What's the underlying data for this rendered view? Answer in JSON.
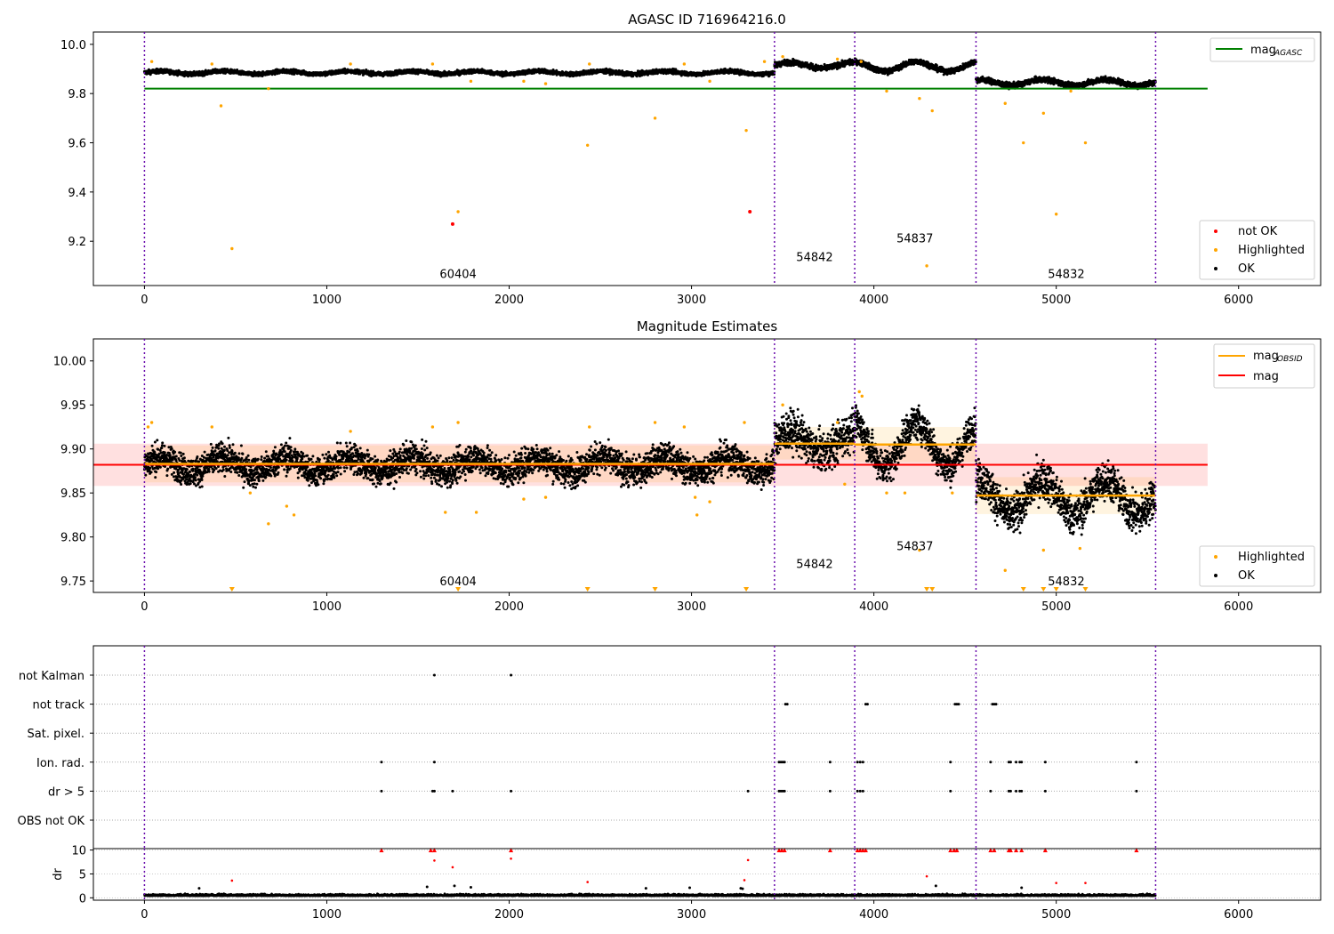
{
  "chart_data": [
    {
      "type": "scatter",
      "title": "AGASC ID 716964216.0",
      "xlabel": "",
      "ylabel": "",
      "xlim": [
        -280,
        6450
      ],
      "ylim": [
        9.02,
        10.05
      ],
      "xticks": [
        0,
        1000,
        2000,
        3000,
        4000,
        5000,
        6000
      ],
      "yticks": [
        9.2,
        9.4,
        9.6,
        9.8,
        10.0
      ],
      "ytick_format": 1,
      "grid": false,
      "legend_placement": "top-right / lower-right",
      "segment_boundaries": [
        0,
        3455,
        3895,
        4560,
        5545
      ],
      "obsids": [
        {
          "label": "60404",
          "x": 1720,
          "y": 9.05
        },
        {
          "label": "54842",
          "x": 3675,
          "y": 9.12
        },
        {
          "label": "54837",
          "x": 4225,
          "y": 9.195
        },
        {
          "label": "54832",
          "x": 5055,
          "y": 9.05
        }
      ],
      "lines": [
        {
          "name": "mag",
          "subscript": "AGASC",
          "color": "#008000",
          "x": [
            0,
            5830
          ],
          "y": [
            9.82,
            9.82
          ]
        }
      ],
      "ok_segments": [
        {
          "x0": 0,
          "x1": 3455,
          "base": 9.885,
          "amp": 0.006,
          "noise": 0.006
        },
        {
          "x0": 3455,
          "x1": 3895,
          "base": 9.915,
          "amp": 0.012,
          "noise": 0.008
        },
        {
          "x0": 3895,
          "x1": 4560,
          "base": 9.91,
          "amp": 0.02,
          "noise": 0.008
        },
        {
          "x0": 4560,
          "x1": 5545,
          "base": 9.845,
          "amp": 0.012,
          "noise": 0.008
        }
      ],
      "highlighted": [
        [
          40,
          9.93
        ],
        [
          370,
          9.92
        ],
        [
          420,
          9.75
        ],
        [
          480,
          9.17
        ],
        [
          680,
          9.82
        ],
        [
          1130,
          9.92
        ],
        [
          1580,
          9.92
        ],
        [
          1720,
          9.32
        ],
        [
          1790,
          9.85
        ],
        [
          2080,
          9.85
        ],
        [
          2200,
          9.84
        ],
        [
          2430,
          9.59
        ],
        [
          2440,
          9.92
        ],
        [
          2800,
          9.7
        ],
        [
          2960,
          9.92
        ],
        [
          3100,
          9.85
        ],
        [
          3300,
          9.65
        ],
        [
          3400,
          9.93
        ],
        [
          3500,
          9.95
        ],
        [
          3800,
          9.94
        ],
        [
          3930,
          9.93
        ],
        [
          4070,
          9.81
        ],
        [
          4250,
          9.78
        ],
        [
          4290,
          9.1
        ],
        [
          4320,
          9.73
        ],
        [
          4720,
          9.76
        ],
        [
          4820,
          9.6
        ],
        [
          4930,
          9.72
        ],
        [
          5000,
          9.31
        ],
        [
          5160,
          9.6
        ],
        [
          5080,
          9.81
        ]
      ],
      "not_ok": [
        [
          1690,
          9.27
        ],
        [
          3320,
          9.32
        ]
      ],
      "legends": [
        {
          "entries": [
            {
              "label": "mag",
              "subscript": "AGASC",
              "kind": "line",
              "color": "#008000"
            }
          ]
        },
        {
          "entries": [
            {
              "label": "not OK",
              "kind": "dot",
              "color": "#ff0000"
            },
            {
              "label": "Highlighted",
              "kind": "dot",
              "color": "#ffa500"
            },
            {
              "label": "OK",
              "kind": "dot",
              "color": "#000000"
            }
          ]
        }
      ]
    },
    {
      "type": "scatter",
      "title": "Magnitude Estimates",
      "xlabel": "",
      "ylabel": "",
      "xlim": [
        -280,
        6450
      ],
      "ylim": [
        9.737,
        10.025
      ],
      "xticks": [
        0,
        1000,
        2000,
        3000,
        4000,
        5000,
        6000
      ],
      "yticks": [
        9.75,
        9.8,
        9.85,
        9.9,
        9.95,
        10.0
      ],
      "ytick_format": 2,
      "grid": false,
      "legend_placement": "top-right / lower-right",
      "segment_boundaries": [
        0,
        3455,
        3895,
        4560,
        5545
      ],
      "obsids": [
        {
          "label": "60404",
          "x": 1720,
          "y": 9.745
        },
        {
          "label": "54842",
          "x": 3675,
          "y": 9.765
        },
        {
          "label": "54837",
          "x": 4225,
          "y": 9.785
        },
        {
          "label": "54832",
          "x": 5055,
          "y": 9.745
        }
      ],
      "mag_line": {
        "name": "mag",
        "color": "#ff0000",
        "x": [
          -280,
          5830
        ],
        "y": 9.882,
        "band": [
          9.858,
          9.906
        ]
      },
      "obsid_mags": [
        {
          "x0": 0,
          "x1": 3455,
          "y": 9.883,
          "band": [
            9.862,
            9.904
          ]
        },
        {
          "x0": 3455,
          "x1": 3895,
          "y": 9.906,
          "band": [
            9.888,
            9.925
          ]
        },
        {
          "x0": 3895,
          "x1": 4560,
          "y": 9.905,
          "band": [
            9.885,
            9.925
          ]
        },
        {
          "x0": 4560,
          "x1": 5545,
          "y": 9.847,
          "band": [
            9.826,
            9.868
          ]
        }
      ],
      "ok_segments": [
        {
          "x0": 0,
          "x1": 3455,
          "base": 9.882,
          "amp": 0.008,
          "noise": 0.012
        },
        {
          "x0": 3455,
          "x1": 3895,
          "base": 9.908,
          "amp": 0.012,
          "noise": 0.016
        },
        {
          "x0": 3895,
          "x1": 4560,
          "base": 9.905,
          "amp": 0.025,
          "noise": 0.014
        },
        {
          "x0": 4560,
          "x1": 5545,
          "base": 9.845,
          "amp": 0.02,
          "noise": 0.016
        }
      ],
      "highlighted": [
        [
          20,
          9.925
        ],
        [
          40,
          9.93
        ],
        [
          370,
          9.925
        ],
        [
          580,
          9.85
        ],
        [
          680,
          9.815
        ],
        [
          780,
          9.835
        ],
        [
          820,
          9.825
        ],
        [
          1130,
          9.92
        ],
        [
          1580,
          9.925
        ],
        [
          1650,
          9.828
        ],
        [
          1720,
          9.93
        ],
        [
          1820,
          9.828
        ],
        [
          2080,
          9.843
        ],
        [
          2200,
          9.845
        ],
        [
          2440,
          9.925
        ],
        [
          2800,
          9.93
        ],
        [
          2960,
          9.925
        ],
        [
          3020,
          9.845
        ],
        [
          3030,
          9.825
        ],
        [
          3100,
          9.84
        ],
        [
          3290,
          9.93
        ],
        [
          3500,
          9.95
        ],
        [
          3800,
          9.93
        ],
        [
          3840,
          9.86
        ],
        [
          3920,
          9.965
        ],
        [
          3935,
          9.96
        ],
        [
          4070,
          9.85
        ],
        [
          4170,
          9.85
        ],
        [
          4250,
          9.785
        ],
        [
          4430,
          9.85
        ],
        [
          4720,
          9.762
        ],
        [
          4930,
          9.785
        ],
        [
          5130,
          9.787
        ]
      ],
      "clipped_markers_x": [
        480,
        1720,
        2430,
        2800,
        3300,
        4290,
        4320,
        4820,
        4930,
        5000,
        5160
      ],
      "legends": [
        {
          "entries": [
            {
              "label": "mag",
              "subscript": "OBSID",
              "kind": "line",
              "color": "#ffa500"
            },
            {
              "label": "mag",
              "kind": "line",
              "color": "#ff0000"
            }
          ]
        },
        {
          "entries": [
            {
              "label": "Highlighted",
              "kind": "dot",
              "color": "#ffa500"
            },
            {
              "label": "OK",
              "kind": "dot",
              "color": "#000000"
            }
          ]
        }
      ]
    },
    {
      "type": "scatter",
      "title": "",
      "xlabel": "",
      "ylabel": "",
      "xlim": [
        -280,
        6450
      ],
      "flag_rows": [
        "not Kalman",
        "not track",
        "Sat. pixel.",
        "Ion. rad.",
        "dr > 5",
        "OBS not OK"
      ],
      "flag_points": {
        "not Kalman": [
          1590,
          2010
        ],
        "not track": [
          3515,
          3525,
          3955,
          3965,
          4445,
          4455,
          4465,
          4650,
          4660,
          4670
        ],
        "Sat. pixel.": [],
        "Ion. rad.": [
          1300,
          1590,
          3480,
          3490,
          3500,
          3510,
          3760,
          3910,
          3925,
          3940,
          4420,
          4640,
          4740,
          4750,
          4780,
          4800,
          4810,
          4940,
          5440
        ],
        "dr > 5": [
          1300,
          1580,
          1590,
          1690,
          2010,
          3310,
          3480,
          3490,
          3500,
          3510,
          3760,
          3910,
          3925,
          3940,
          4420,
          4640,
          4740,
          4750,
          4780,
          4800,
          4810,
          4940,
          5440
        ],
        "OBS not OK": []
      },
      "segment_boundaries": [
        0,
        3455,
        3895,
        4560,
        5545
      ]
    },
    {
      "type": "scatter",
      "title": "",
      "xlabel": "",
      "ylabel": "dr",
      "xlim": [
        -280,
        6450
      ],
      "ylim": [
        -0.5,
        10.3
      ],
      "xticks": [
        0,
        1000,
        2000,
        3000,
        4000,
        5000,
        6000
      ],
      "yticks": [
        0,
        5,
        10
      ],
      "ytick_format": 0,
      "ok_baseline": {
        "x0": 0,
        "x1": 5545,
        "base": 0.4,
        "noise": 0.3
      },
      "red_points": [
        [
          480,
          3.6
        ],
        [
          1300,
          10
        ],
        [
          1570,
          10
        ],
        [
          1590,
          10
        ],
        [
          1590,
          7.8
        ],
        [
          1690,
          6.4
        ],
        [
          2010,
          10
        ],
        [
          2010,
          8.2
        ],
        [
          2430,
          3.3
        ],
        [
          3310,
          7.9
        ],
        [
          3290,
          3.7
        ],
        [
          3480,
          10
        ],
        [
          3495,
          10
        ],
        [
          3510,
          10
        ],
        [
          3760,
          10
        ],
        [
          3910,
          10
        ],
        [
          3925,
          10
        ],
        [
          3940,
          10
        ],
        [
          3955,
          10
        ],
        [
          4290,
          4.5
        ],
        [
          4420,
          10
        ],
        [
          4440,
          10
        ],
        [
          4455,
          10
        ],
        [
          4640,
          10
        ],
        [
          4660,
          10
        ],
        [
          4740,
          10
        ],
        [
          4750,
          10
        ],
        [
          4780,
          10
        ],
        [
          4810,
          10
        ],
        [
          4940,
          10
        ],
        [
          5000,
          3.1
        ],
        [
          5160,
          3.1
        ],
        [
          5440,
          10
        ]
      ],
      "black_extra": [
        [
          300,
          2.0
        ],
        [
          1550,
          2.3
        ],
        [
          1700,
          2.5
        ],
        [
          1790,
          2.2
        ],
        [
          2750,
          2.0
        ],
        [
          2990,
          2.1
        ],
        [
          3270,
          2.0
        ],
        [
          3280,
          1.9
        ],
        [
          4340,
          2.5
        ],
        [
          4810,
          2.1
        ]
      ],
      "segment_boundaries": [
        0,
        3455,
        3895,
        4560,
        5545
      ]
    }
  ]
}
